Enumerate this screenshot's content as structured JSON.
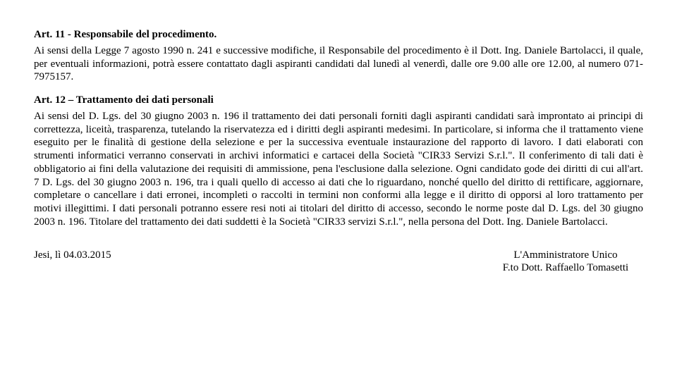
{
  "art11": {
    "title": "Art. 11 - Responsabile del procedimento.",
    "body": "Ai sensi della Legge 7 agosto 1990 n. 241 e successive modifiche, il Responsabile del procedimento è il Dott. Ing. Daniele Bartolacci, il quale, per eventuali informazioni, potrà essere contattato dagli aspiranti candidati dal lunedì al venerdì, dalle ore 9.00 alle ore 12.00, al numero 071-7975157."
  },
  "art12": {
    "title": "Art. 12 – Trattamento dei dati personali",
    "body": "Ai sensi del D. Lgs. del 30 giugno 2003 n. 196 il trattamento dei dati personali forniti dagli aspiranti candidati sarà improntato ai principi di correttezza, liceità, trasparenza, tutelando la riservatezza ed i diritti degli aspiranti medesimi. In particolare, si informa che il trattamento viene eseguito per le finalità di gestione della selezione e per la successiva eventuale instaurazione del rapporto di lavoro. I dati elaborati con strumenti informatici verranno conservati in archivi informatici e cartacei della Società \"CIR33 Servizi S.r.l.\". Il conferimento di tali dati è obbligatorio ai fini della valutazione dei requisiti di ammissione, pena l'esclusione dalla selezione. Ogni candidato gode dei diritti di cui all'art. 7 D. Lgs. del 30 giugno 2003 n. 196, tra i quali quello di accesso ai dati che lo riguardano, nonché quello del diritto di rettificare, aggiornare, completare o cancellare i dati erronei, incompleti o raccolti in termini non conformi alla legge e il diritto di opporsi al loro trattamento per motivi illegittimi. I dati personali potranno essere resi noti ai titolari del diritto di accesso, secondo le norme poste dal D. Lgs. del 30 giugno 2003 n. 196. Titolare del trattamento dei dati suddetti è la Società \"CIR33 servizi S.r.l.\", nella persona del Dott. Ing. Daniele Bartolacci."
  },
  "signature": {
    "place_date": "Jesi, lì 04.03.2015",
    "role": "L'Amministratore Unico",
    "signed": "F.to Dott. Raffaello Tomasetti"
  }
}
